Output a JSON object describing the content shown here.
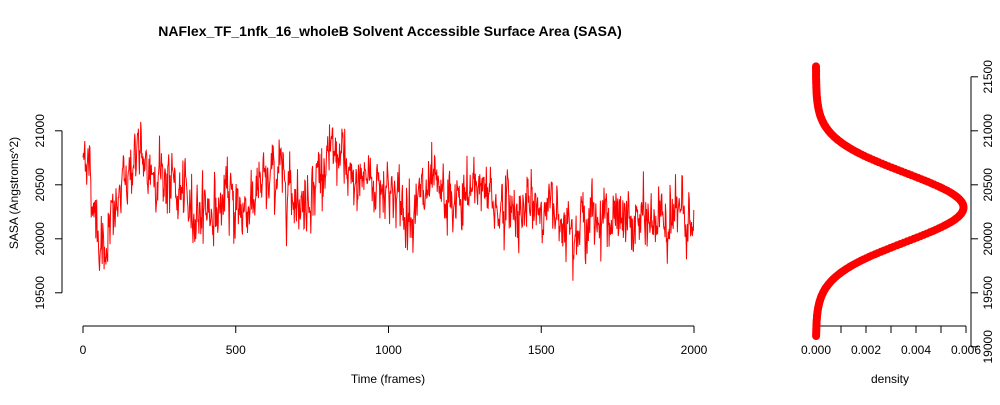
{
  "colors": {
    "series": "#ff0000",
    "axis": "#000000",
    "background": "#ffffff"
  },
  "chart_data": [
    {
      "type": "line",
      "title": "NAFlex_TF_1nfk_16_wholeB Solvent Accessible Surface Area (SASA)",
      "xlabel": "Time (frames)",
      "ylabel": "SASA (Angstroms^2)",
      "xlim": [
        0,
        2000
      ],
      "ylim": [
        19100,
        21600
      ],
      "x_ticks": [
        0,
        500,
        1000,
        1500,
        2000
      ],
      "y_ticks": [
        19500,
        20000,
        20500,
        21000
      ],
      "grid": false,
      "series": [
        {
          "color": "#ff0000",
          "x": [
            0,
            10,
            20,
            40,
            60,
            80,
            100,
            130,
            160,
            180,
            200,
            230,
            260,
            290,
            320,
            360,
            400,
            440,
            480,
            520,
            560,
            600,
            640,
            680,
            720,
            760,
            800,
            840,
            880,
            920,
            960,
            1000,
            1050,
            1100,
            1150,
            1200,
            1250,
            1300,
            1350,
            1400,
            1450,
            1500,
            1550,
            1600,
            1650,
            1700,
            1750,
            1800,
            1850,
            1900,
            1950,
            2000
          ],
          "y": [
            20700,
            20900,
            20600,
            20250,
            19900,
            20000,
            20200,
            20450,
            20700,
            20850,
            20600,
            20650,
            20600,
            20500,
            20400,
            20250,
            20300,
            20250,
            20400,
            20250,
            20400,
            20500,
            20650,
            20500,
            20300,
            20550,
            20700,
            20800,
            20450,
            20600,
            20500,
            20500,
            20250,
            20350,
            20450,
            20300,
            20350,
            20550,
            20300,
            20300,
            20250,
            20300,
            20250,
            20150,
            20150,
            20250,
            20150,
            20150,
            20150,
            20200,
            20250,
            20000
          ]
        }
      ]
    },
    {
      "type": "line",
      "title": "",
      "xlabel": "density",
      "ylabel": "",
      "xlim": [
        0,
        0.006
      ],
      "ylim": [
        19100,
        21600
      ],
      "x_ticks": [
        "0.000",
        "0.002",
        "0.004",
        "0.006"
      ],
      "y_ticks": [
        19000,
        19500,
        20000,
        20500,
        21000,
        21500
      ],
      "y_axis_side": "right",
      "grid": false,
      "density": {
        "mean": 20290,
        "sd": 320,
        "peak": 0.0059,
        "y_range": [
          19100,
          21600
        ]
      }
    }
  ]
}
